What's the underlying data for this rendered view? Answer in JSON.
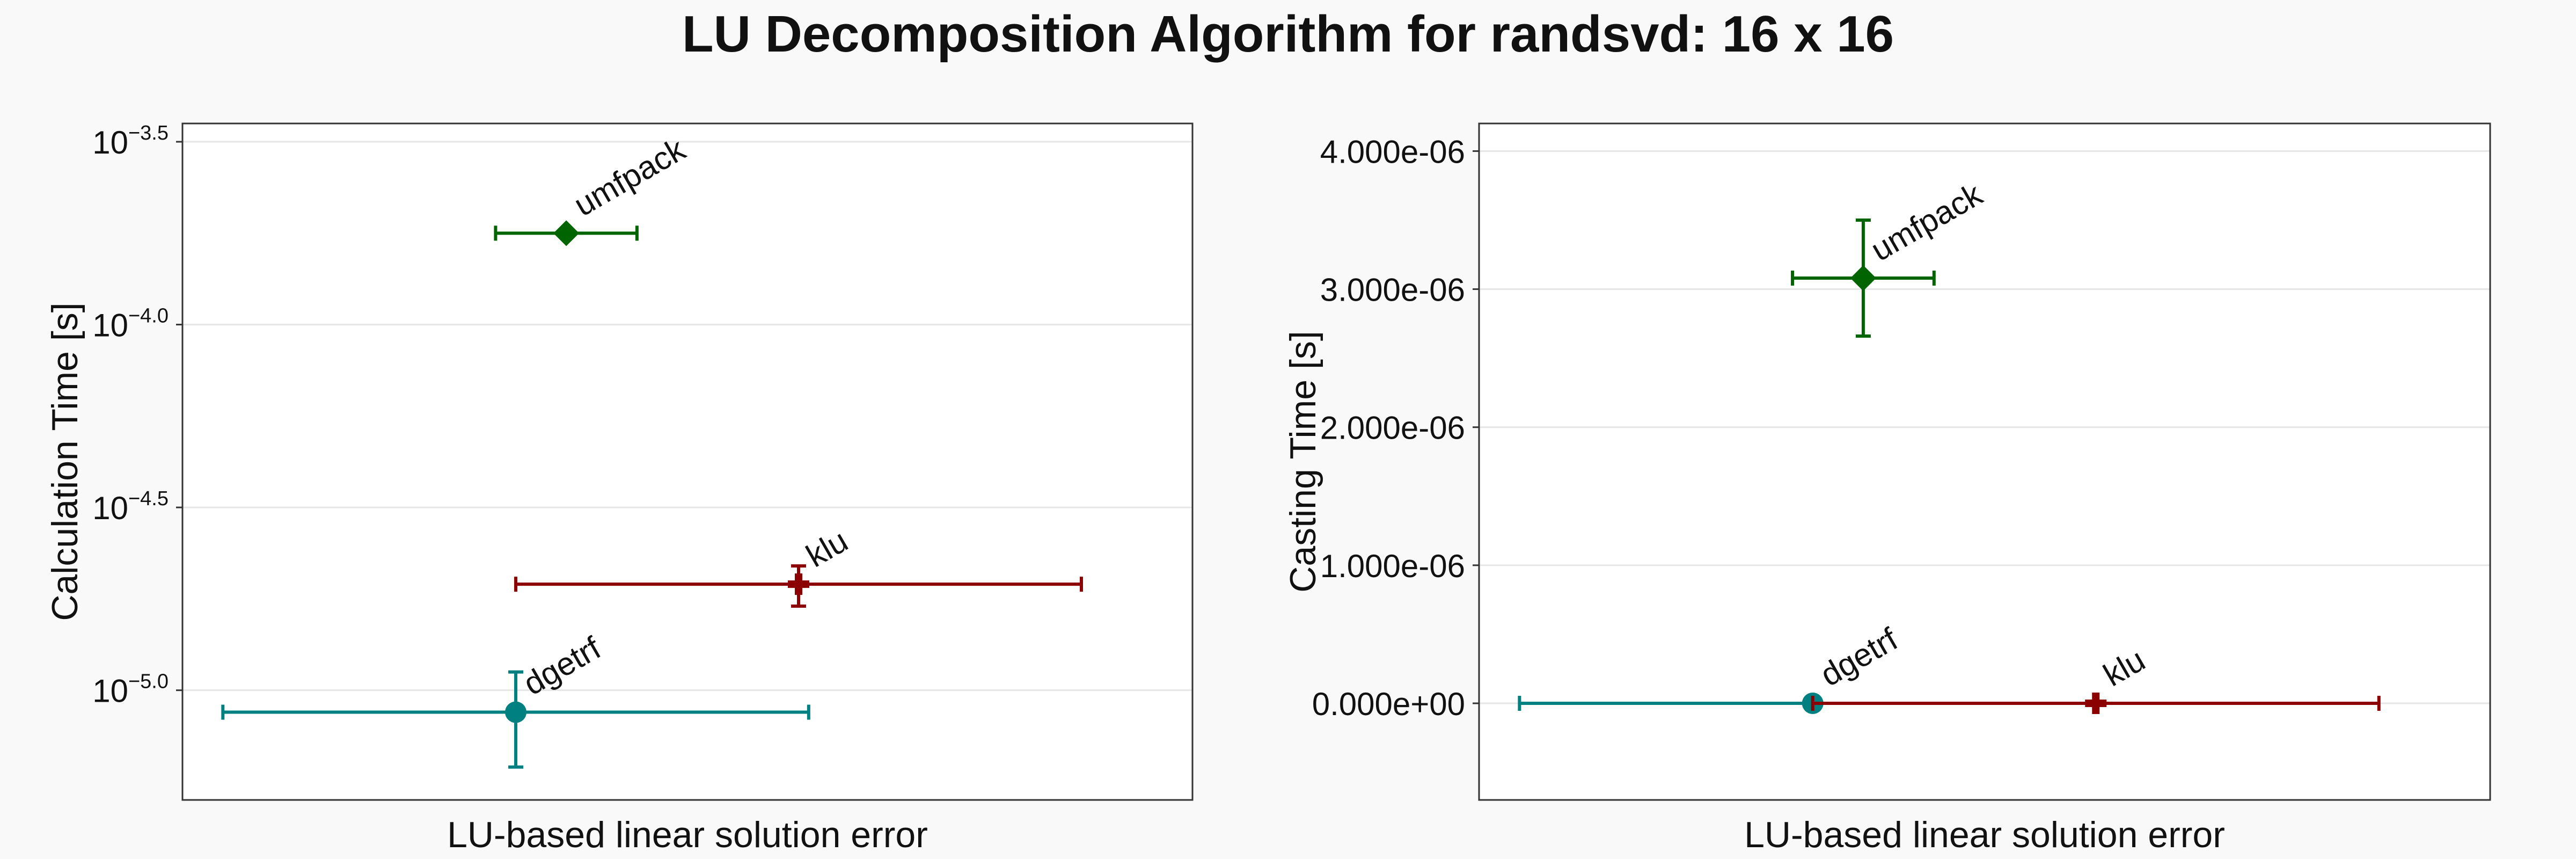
{
  "figure": {
    "title": "LU Decomposition Algorithm for randsvd: 16 x 16"
  },
  "chart_data": [
    {
      "type": "scatter",
      "xlabel": "LU-based linear solution error",
      "ylabel": "Calculation Time [s]",
      "yscale": "log",
      "ylim_log10": [
        -5.3,
        -3.45
      ],
      "y_ticks": [
        {
          "base": "10",
          "exp": "−5.0",
          "log10": -5.0
        },
        {
          "base": "10",
          "exp": "−4.5",
          "log10": -4.5
        },
        {
          "base": "10",
          "exp": "−4.0",
          "log10": -4.0
        },
        {
          "base": "10",
          "exp": "−3.5",
          "log10": -3.5
        }
      ],
      "x_ticks_shown": false,
      "grid": "horizontal",
      "series": [
        {
          "name": "dgetrf",
          "marker": "circle",
          "color": "#008080",
          "x": 0.33,
          "x_err": [
            0.29,
            0.29
          ],
          "y_log10": -5.06,
          "y_err_log10": [
            0.15,
            0.11
          ]
        },
        {
          "name": "klu",
          "marker": "cross",
          "color": "#8b0000",
          "x": 0.61,
          "x_err": [
            0.28,
            0.28
          ],
          "y_log10": -4.71,
          "y_err_log10": [
            0.06,
            0.05
          ]
        },
        {
          "name": "umfpack",
          "marker": "diamond",
          "color": "#006400",
          "x": 0.38,
          "x_err": [
            0.07,
            0.07
          ],
          "y_log10": -3.75,
          "y_err_log10": [
            0.0,
            0.0
          ]
        }
      ]
    },
    {
      "type": "scatter",
      "xlabel": "LU-based linear solution error",
      "ylabel": "Casting Time [s]",
      "yscale": "linear",
      "ylim": [
        -7e-07,
        4.2e-06
      ],
      "y_ticks": [
        {
          "label": "0.000e+00",
          "value": 0
        },
        {
          "label": "1.000e-06",
          "value": 1e-06
        },
        {
          "label": "2.000e-06",
          "value": 2e-06
        },
        {
          "label": "3.000e-06",
          "value": 3e-06
        },
        {
          "label": "4.000e-06",
          "value": 4e-06
        }
      ],
      "x_ticks_shown": false,
      "grid": "horizontal",
      "series": [
        {
          "name": "dgetrf",
          "marker": "circle",
          "color": "#008080",
          "x": 0.33,
          "x_err": [
            0.29,
            0.0
          ],
          "y": 0,
          "y_err": [
            0,
            0
          ]
        },
        {
          "name": "klu",
          "marker": "cross",
          "color": "#8b0000",
          "x": 0.61,
          "x_err": [
            0.28,
            0.28
          ],
          "y": 0,
          "y_err": [
            0,
            0
          ]
        },
        {
          "name": "umfpack",
          "marker": "diamond",
          "color": "#006400",
          "x": 0.38,
          "x_err": [
            0.07,
            0.07
          ],
          "y": 3.08e-06,
          "y_err": [
            4.2e-07,
            4.2e-07
          ]
        }
      ]
    }
  ]
}
